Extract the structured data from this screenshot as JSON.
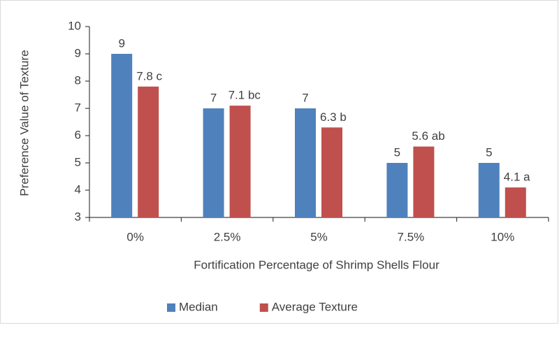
{
  "chart_data": {
    "type": "bar",
    "y_label": "Preference Value of Texture",
    "x_label": "Fortification Percentage of Shrimp  Shells Flour",
    "categories": [
      "0%",
      "2.5%",
      "5%",
      "7.5%",
      "10%"
    ],
    "series": [
      {
        "name": "Median",
        "color": "#4f81bd",
        "values": [
          9,
          7,
          7,
          5,
          5
        ]
      },
      {
        "name": "Average Texture",
        "color": "#c0504d",
        "values": [
          7.8,
          7.1,
          6.3,
          5.6,
          4.1
        ],
        "value_labels": [
          "7.8 c",
          "7.1 bc",
          "6.3 b",
          "5.6 ab",
          "4.1 a"
        ]
      }
    ],
    "ylim": [
      3,
      10
    ],
    "yticks": [
      3,
      4,
      5,
      6,
      7,
      8,
      9,
      10
    ],
    "grid": false,
    "legend": "bottom"
  }
}
